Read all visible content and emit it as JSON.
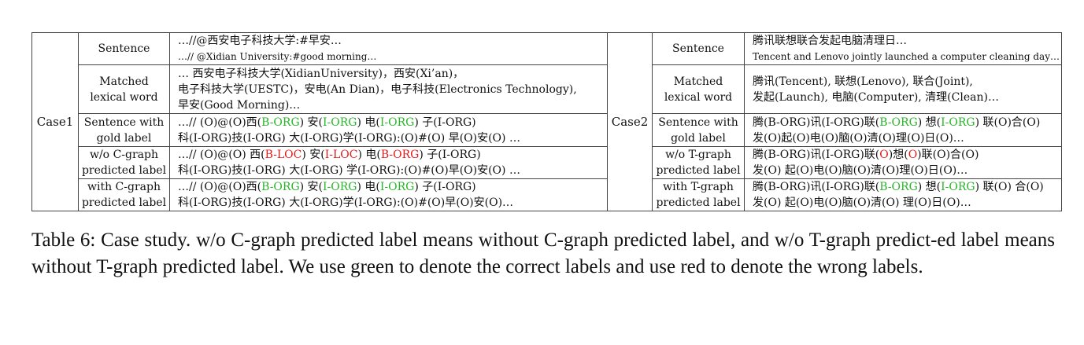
{
  "cases": [
    {
      "id": "Case1",
      "rows": [
        {
          "label": [
            "Sentence"
          ],
          "lines": [
            [
              {
                "t": "…//@西安电子科技大学:#早安…"
              }
            ],
            [
              {
                "t": "…// @Xidian University:#good morning…",
                "small": true
              }
            ]
          ]
        },
        {
          "label": [
            "Matched",
            "lexical word"
          ],
          "lines": [
            [
              {
                "t": "… 西安电子科技大学(XidianUniversity)，西安(Xi’an)，"
              }
            ],
            [
              {
                "t": "电子科技大学(UESTC)，安电(An Dian)，电子科技(Electronics Technology),"
              }
            ],
            [
              {
                "t": "早安(Good Morning)…"
              }
            ]
          ]
        },
        {
          "label": [
            "Sentence with",
            "gold label"
          ],
          "lines": [
            [
              {
                "t": "…// (O)@(O)西("
              },
              {
                "t": "B-ORG",
                "c": "g"
              },
              {
                "t": ") 安("
              },
              {
                "t": "I-ORG",
                "c": "g"
              },
              {
                "t": ") 电("
              },
              {
                "t": "I-ORG",
                "c": "g"
              },
              {
                "t": ") 子(I-ORG)"
              }
            ],
            [
              {
                "t": "科(I-ORG)技(I-ORG) 大(I-ORG)学(I-ORG):(O)#(O) 早(O)安(O) …"
              }
            ]
          ]
        },
        {
          "label": [
            "w/o C-graph",
            "predicted label"
          ],
          "lines": [
            [
              {
                "t": "…// (O)@(O) 西("
              },
              {
                "t": "B-LOC",
                "c": "r"
              },
              {
                "t": ") 安("
              },
              {
                "t": "I-LOC",
                "c": "r"
              },
              {
                "t": ") 电("
              },
              {
                "t": "B-ORG",
                "c": "r"
              },
              {
                "t": ") 子(I-ORG)"
              }
            ],
            [
              {
                "t": "科(I-ORG)技(I-ORG) 大(I-ORG) 学(I-ORG):(O)#(O)早(O)安(O) …"
              }
            ]
          ]
        },
        {
          "label": [
            "with C-graph",
            "predicted label"
          ],
          "lines": [
            [
              {
                "t": "…// (O)@(O)西("
              },
              {
                "t": "B-ORG",
                "c": "g"
              },
              {
                "t": ") 安("
              },
              {
                "t": "I-ORG",
                "c": "g"
              },
              {
                "t": ") 电("
              },
              {
                "t": "I-ORG",
                "c": "g"
              },
              {
                "t": ") 子(I-ORG)"
              }
            ],
            [
              {
                "t": "科(I-ORG)技(I-ORG) 大(I-ORG)学(I-ORG):(O)#(O)早(O)安(O)…"
              }
            ]
          ]
        }
      ]
    },
    {
      "id": "Case2",
      "rows": [
        {
          "label": [
            "Sentence"
          ],
          "lines": [
            [
              {
                "t": "腾讯联想联合发起电脑清理日…"
              }
            ],
            [
              {
                "t": "Tencent and Lenovo jointly launched a computer cleaning day…",
                "small": true
              }
            ]
          ]
        },
        {
          "label": [
            "Matched",
            "lexical word"
          ],
          "lines": [
            [
              {
                "t": "腾讯(Tencent), 联想(Lenovo), 联合(Joint),"
              }
            ],
            [
              {
                "t": "发起(Launch), 电脑(Computer), 清理(Clean)…"
              }
            ]
          ]
        },
        {
          "label": [
            "Sentence with",
            "gold label"
          ],
          "lines": [
            [
              {
                "t": "腾(B-ORG)讯(I-ORG)联("
              },
              {
                "t": "B-ORG",
                "c": "g"
              },
              {
                "t": ") 想("
              },
              {
                "t": "I-ORG",
                "c": "g"
              },
              {
                "t": ") 联(O)合(O)"
              }
            ],
            [
              {
                "t": "发(O)起(O)电(O)脑(O)清(O)理(O)日(O)…"
              }
            ]
          ]
        },
        {
          "label": [
            "w/o T-graph",
            "predicted label"
          ],
          "lines": [
            [
              {
                "t": "腾(B-ORG)讯(I-ORG)联("
              },
              {
                "t": "O",
                "c": "r"
              },
              {
                "t": ")想("
              },
              {
                "t": "O",
                "c": "r"
              },
              {
                "t": ")联(O)合(O)"
              }
            ],
            [
              {
                "t": "发(O) 起(O)电(O)脑(O)清(O)理(O)日(O)…"
              }
            ]
          ]
        },
        {
          "label": [
            "with T-graph",
            "predicted label"
          ],
          "lines": [
            [
              {
                "t": "腾(B-ORG)讯(I-ORG)联("
              },
              {
                "t": "B-ORG",
                "c": "g"
              },
              {
                "t": ") 想("
              },
              {
                "t": "I-ORG",
                "c": "g"
              },
              {
                "t": ") 联(O) 合(O)"
              }
            ],
            [
              {
                "t": "发(O) 起(O)电(O)脑(O)清(O) 理(O)日(O)…"
              }
            ]
          ]
        }
      ]
    }
  ],
  "caption": "Table 6: Case study. w/o C-graph predicted label means without C-graph predicted label, and w/o T-graph predict-ed label means without T-graph predicted label. We use green to denote the correct labels and use red to denote the wrong labels."
}
